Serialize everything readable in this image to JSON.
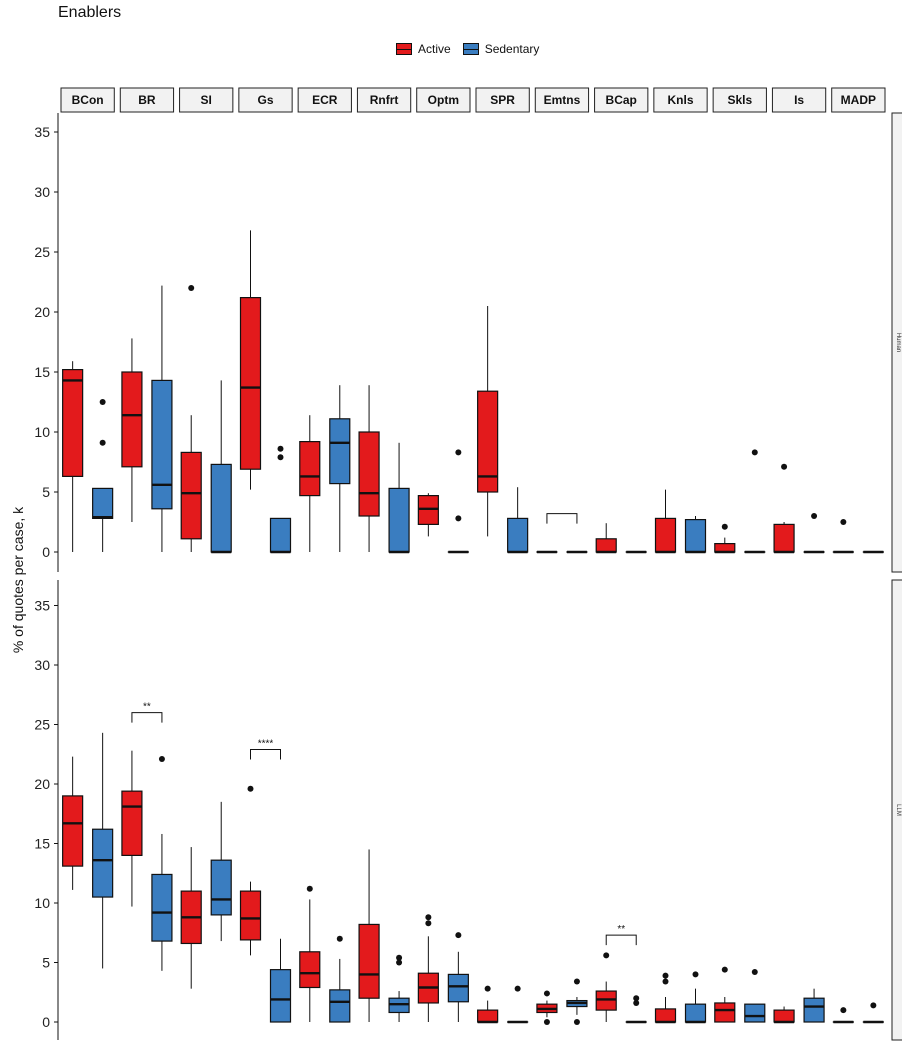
{
  "title": "Enablers",
  "colors": {
    "active": "#E31A1C",
    "sedentary": "#3A7DC0",
    "outline": "#111111"
  },
  "legend": {
    "active": "Active",
    "sedentary": "Sedentary"
  },
  "chart_data": {
    "type": "boxplot",
    "ylabel": "% of quotes per case, k",
    "ylim": [
      -1.2,
      36
    ],
    "yticks": [
      0,
      5,
      10,
      15,
      20,
      25,
      30,
      35
    ],
    "categories": [
      "BCon",
      "BR",
      "SI",
      "Gs",
      "ECR",
      "Rnfrt",
      "Optm",
      "SPR",
      "Emtns",
      "BCap",
      "Knls",
      "Skls",
      "Is",
      "MADP"
    ],
    "panels": [
      {
        "strip": "Human",
        "boxes": {
          "active": [
            {
              "min": 0,
              "q1": 6.3,
              "med": 14.3,
              "q3": 15.2,
              "max": 15.9,
              "out": []
            },
            {
              "min": 2.5,
              "q1": 7.1,
              "med": 11.4,
              "q3": 15,
              "max": 17.8,
              "out": []
            },
            {
              "min": 0,
              "q1": 1.1,
              "med": 4.9,
              "q3": 8.3,
              "max": 11.4,
              "out": [
                22
              ]
            },
            {
              "min": 5.2,
              "q1": 6.9,
              "med": 13.7,
              "q3": 21.2,
              "max": 26.8,
              "out": []
            },
            {
              "min": 0,
              "q1": 4.7,
              "med": 6.3,
              "q3": 9.2,
              "max": 11.4,
              "out": []
            },
            {
              "min": 0,
              "q1": 3,
              "med": 4.9,
              "q3": 10,
              "max": 13.9,
              "out": []
            },
            {
              "min": 1.3,
              "q1": 2.3,
              "med": 3.6,
              "q3": 4.7,
              "max": 4.9,
              "out": []
            },
            {
              "min": 1.3,
              "q1": 5,
              "med": 6.3,
              "q3": 13.4,
              "max": 20.5,
              "out": []
            },
            {
              "min": 0,
              "q1": 0,
              "med": 0,
              "q3": 0,
              "max": 0,
              "out": []
            },
            {
              "min": 0,
              "q1": 0,
              "med": 0,
              "q3": 1.1,
              "max": 2.4,
              "out": []
            },
            {
              "min": 0,
              "q1": 0,
              "med": 0,
              "q3": 2.8,
              "max": 5.2,
              "out": []
            },
            {
              "min": 0,
              "q1": 0,
              "med": 0,
              "q3": 0.7,
              "max": 1.2,
              "out": [
                2.1
              ]
            },
            {
              "min": 0,
              "q1": 0,
              "med": 0,
              "q3": 2.3,
              "max": 2.5,
              "out": [
                7.1
              ]
            },
            {
              "min": 0,
              "q1": 0,
              "med": 0,
              "q3": 0,
              "max": 0,
              "out": [
                2.5
              ]
            }
          ],
          "sedentary": [
            {
              "min": 0,
              "q1": 2.8,
              "med": 2.9,
              "q3": 5.3,
              "max": 5.3,
              "out": [
                9.1,
                12.5
              ]
            },
            {
              "min": 0,
              "q1": 3.6,
              "med": 5.6,
              "q3": 14.3,
              "max": 22.2,
              "out": []
            },
            {
              "min": 0,
              "q1": 0,
              "med": 0,
              "q3": 7.3,
              "max": 14.3,
              "out": []
            },
            {
              "min": 0,
              "q1": 0,
              "med": 0,
              "q3": 2.8,
              "max": 2.8,
              "out": [
                7.9,
                8.6
              ]
            },
            {
              "min": 0,
              "q1": 5.7,
              "med": 9.1,
              "q3": 11.1,
              "max": 13.9,
              "out": []
            },
            {
              "min": 0,
              "q1": 0,
              "med": 0,
              "q3": 5.3,
              "max": 9.1,
              "out": []
            },
            {
              "min": 0,
              "q1": 0,
              "med": 0,
              "q3": 0,
              "max": 0,
              "out": [
                2.8,
                8.3
              ]
            },
            {
              "min": 0,
              "q1": 0,
              "med": 0,
              "q3": 2.8,
              "max": 5.4,
              "out": []
            },
            {
              "min": 0,
              "q1": 0,
              "med": 0,
              "q3": 0,
              "max": 0,
              "out": []
            },
            {
              "min": 0,
              "q1": 0,
              "med": 0,
              "q3": 0,
              "max": 0,
              "out": []
            },
            {
              "min": 0,
              "q1": 0,
              "med": 0,
              "q3": 2.7,
              "max": 3,
              "out": []
            },
            {
              "min": 0,
              "q1": 0,
              "med": 0,
              "q3": 0,
              "max": 0,
              "out": [
                8.3
              ]
            },
            {
              "min": 0,
              "q1": 0,
              "med": 0,
              "q3": 0,
              "max": 0,
              "out": [
                3
              ]
            },
            {
              "min": 0,
              "q1": 0,
              "med": 0,
              "q3": 0,
              "max": 0,
              "out": []
            }
          ]
        },
        "sig": [
          {
            "category": "Emtns",
            "label": "",
            "y": 3.2
          }
        ]
      },
      {
        "strip": "LLM",
        "boxes": {
          "active": [
            {
              "min": 11.1,
              "q1": 13.1,
              "med": 16.7,
              "q3": 19,
              "max": 22.3,
              "out": []
            },
            {
              "min": 9.7,
              "q1": 14,
              "med": 18.1,
              "q3": 19.4,
              "max": 22.8,
              "out": []
            },
            {
              "min": 2.8,
              "q1": 6.6,
              "med": 8.8,
              "q3": 11,
              "max": 14.7,
              "out": []
            },
            {
              "min": 5.6,
              "q1": 6.9,
              "med": 8.7,
              "q3": 11,
              "max": 11.8,
              "out": [
                19.6
              ]
            },
            {
              "min": 0,
              "q1": 2.9,
              "med": 4.1,
              "q3": 5.9,
              "max": 10.3,
              "out": [
                11.2
              ]
            },
            {
              "min": 0,
              "q1": 2,
              "med": 4,
              "q3": 8.2,
              "max": 14.5,
              "out": []
            },
            {
              "min": 0,
              "q1": 1.6,
              "med": 2.9,
              "q3": 4.1,
              "max": 7.2,
              "out": [
                8.3,
                8.8
              ]
            },
            {
              "min": 0,
              "q1": 0,
              "med": 0,
              "q3": 1,
              "max": 1.8,
              "out": [
                2.8
              ]
            },
            {
              "min": 0.4,
              "q1": 0.8,
              "med": 1.1,
              "q3": 1.5,
              "max": 1.8,
              "out": [
                0,
                2.4
              ]
            },
            {
              "min": 0,
              "q1": 1,
              "med": 1.9,
              "q3": 2.6,
              "max": 3.4,
              "out": [
                5.6
              ]
            },
            {
              "min": 0,
              "q1": 0,
              "med": 0,
              "q3": 1.1,
              "max": 2.1,
              "out": [
                3.4,
                3.9
              ]
            },
            {
              "min": 0,
              "q1": 0,
              "med": 1,
              "q3": 1.6,
              "max": 2.1,
              "out": [
                4.4
              ]
            },
            {
              "min": 0,
              "q1": 0,
              "med": 0,
              "q3": 1,
              "max": 1.3,
              "out": []
            },
            {
              "min": 0,
              "q1": 0,
              "med": 0,
              "q3": 0,
              "max": 0,
              "out": [
                1
              ]
            }
          ],
          "sedentary": [
            {
              "min": 4.5,
              "q1": 10.5,
              "med": 13.6,
              "q3": 16.2,
              "max": 24.3,
              "out": []
            },
            {
              "min": 4.3,
              "q1": 6.8,
              "med": 9.2,
              "q3": 12.4,
              "max": 15.8,
              "out": [
                22.1
              ]
            },
            {
              "min": 6.8,
              "q1": 9,
              "med": 10.3,
              "q3": 13.6,
              "max": 18.5,
              "out": []
            },
            {
              "min": 0,
              "q1": 0,
              "med": 1.9,
              "q3": 4.4,
              "max": 7,
              "out": []
            },
            {
              "min": 0,
              "q1": 0,
              "med": 1.7,
              "q3": 2.7,
              "max": 5.3,
              "out": [
                7
              ]
            },
            {
              "min": 0,
              "q1": 0.8,
              "med": 1.5,
              "q3": 2,
              "max": 2.6,
              "out": [
                5,
                5.4
              ]
            },
            {
              "min": 0,
              "q1": 1.7,
              "med": 3,
              "q3": 4,
              "max": 5.9,
              "out": [
                7.3
              ]
            },
            {
              "min": 0,
              "q1": 0,
              "med": 0,
              "q3": 0,
              "max": 0,
              "out": [
                2.8
              ]
            },
            {
              "min": 0.6,
              "q1": 1.3,
              "med": 1.6,
              "q3": 1.8,
              "max": 2.1,
              "out": [
                0,
                3.4
              ]
            },
            {
              "min": 0,
              "q1": 0,
              "med": 0,
              "q3": 0,
              "max": 0,
              "out": [
                1.6,
                2
              ]
            },
            {
              "min": 0,
              "q1": 0,
              "med": 0,
              "q3": 1.5,
              "max": 2.8,
              "out": [
                4
              ]
            },
            {
              "min": 0,
              "q1": 0,
              "med": 0.5,
              "q3": 1.5,
              "max": 1.5,
              "out": [
                4.2
              ]
            },
            {
              "min": 0,
              "q1": 0,
              "med": 1.3,
              "q3": 2,
              "max": 2.8,
              "out": []
            },
            {
              "min": 0,
              "q1": 0,
              "med": 0,
              "q3": 0,
              "max": 0,
              "out": [
                1.4
              ]
            }
          ]
        },
        "sig": [
          {
            "category": "BR",
            "label": "**",
            "y": 26
          },
          {
            "category": "Gs",
            "label": "****",
            "y": 22.9
          },
          {
            "category": "BCap",
            "label": "**",
            "y": 7.3
          }
        ]
      }
    ]
  }
}
